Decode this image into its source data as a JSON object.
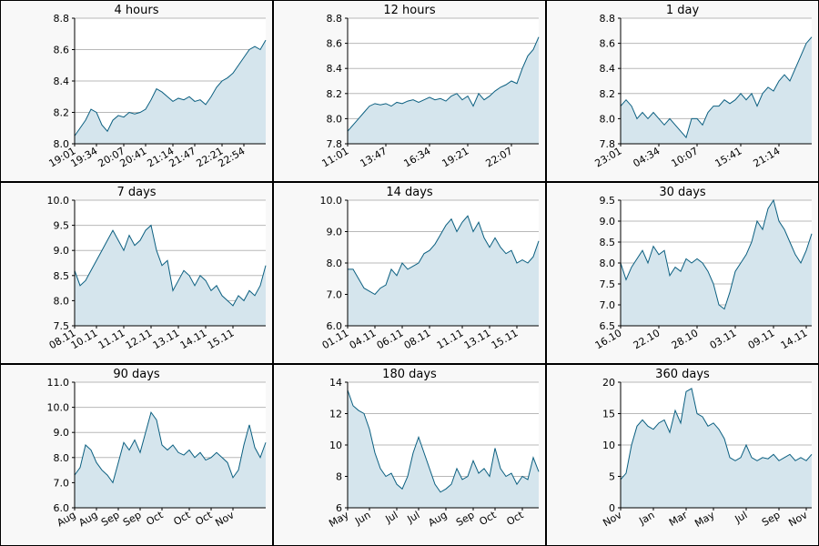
{
  "chart_data": [
    {
      "type": "area",
      "title": "4 hours",
      "color": "#0b5f80",
      "fill": "#d5e5ed",
      "grid": true,
      "categories": [
        "19:01",
        null,
        null,
        null,
        "19:34",
        null,
        null,
        null,
        null,
        "20:07",
        null,
        null,
        null,
        "20:41",
        null,
        null,
        null,
        null,
        "21:14",
        null,
        null,
        null,
        "21:47",
        null,
        null,
        null,
        null,
        "22:21",
        null,
        null,
        null,
        "22:54",
        null,
        null,
        null,
        null
      ],
      "values": [
        8.05,
        8.1,
        8.15,
        8.22,
        8.2,
        8.12,
        8.08,
        8.15,
        8.18,
        8.17,
        8.2,
        8.19,
        8.2,
        8.22,
        8.28,
        8.35,
        8.33,
        8.3,
        8.27,
        8.29,
        8.28,
        8.3,
        8.27,
        8.28,
        8.25,
        8.3,
        8.36,
        8.4,
        8.42,
        8.45,
        8.5,
        8.55,
        8.6,
        8.62,
        8.6,
        8.66
      ],
      "ylim": [
        8.0,
        8.8
      ],
      "yticks": [
        {
          "value": 8.0,
          "label": "8.0"
        },
        8.2,
        8.4,
        8.6,
        8.8
      ]
    },
    {
      "type": "area",
      "title": "12 hours",
      "color": "#0b5f80",
      "fill": "#d5e5ed",
      "grid": true,
      "categories": [
        "11:01",
        null,
        null,
        null,
        null,
        null,
        null,
        "13:47",
        null,
        null,
        null,
        null,
        null,
        null,
        null,
        "16:34",
        null,
        null,
        null,
        null,
        null,
        null,
        "19:21",
        null,
        null,
        null,
        null,
        null,
        null,
        null,
        "22:07",
        null,
        null,
        null,
        null,
        null
      ],
      "values": [
        7.9,
        7.95,
        8.0,
        8.05,
        8.1,
        8.12,
        8.11,
        8.12,
        8.1,
        8.13,
        8.12,
        8.14,
        8.15,
        8.13,
        8.15,
        8.17,
        8.15,
        8.16,
        8.14,
        8.18,
        8.2,
        8.15,
        8.18,
        8.1,
        8.2,
        8.15,
        8.18,
        8.22,
        8.25,
        8.27,
        8.3,
        8.28,
        8.4,
        8.5,
        8.55,
        8.65
      ],
      "ylim": [
        7.8,
        8.8
      ],
      "yticks": [
        7.8,
        {
          "value": 8.0,
          "label": "8.0"
        },
        8.2,
        8.4,
        8.6,
        8.8
      ]
    },
    {
      "type": "area",
      "title": "1 day",
      "color": "#0b5f80",
      "fill": "#d5e5ed",
      "grid": true,
      "categories": [
        "23:01",
        null,
        null,
        null,
        null,
        null,
        null,
        "04:34",
        null,
        null,
        null,
        null,
        null,
        null,
        "10:07",
        null,
        null,
        null,
        null,
        null,
        null,
        null,
        "15:41",
        null,
        null,
        null,
        null,
        null,
        null,
        "21:14",
        null,
        null,
        null,
        null,
        null,
        null
      ],
      "values": [
        8.1,
        8.15,
        8.1,
        8.0,
        8.05,
        8.0,
        8.05,
        8.0,
        7.95,
        8.0,
        7.95,
        7.9,
        7.85,
        8.0,
        8.0,
        7.95,
        8.05,
        8.1,
        8.1,
        8.15,
        8.12,
        8.15,
        8.2,
        8.15,
        8.2,
        8.1,
        8.2,
        8.25,
        8.22,
        8.3,
        8.35,
        8.3,
        8.4,
        8.5,
        8.6,
        8.65
      ],
      "ylim": [
        7.8,
        8.8
      ],
      "yticks": [
        7.8,
        {
          "value": 8.0,
          "label": "8.0"
        },
        8.2,
        8.4,
        8.6,
        8.8
      ]
    },
    {
      "type": "area",
      "title": "7 days",
      "color": "#0b5f80",
      "fill": "#d5e5ed",
      "grid": true,
      "categories": [
        "08.11",
        null,
        null,
        null,
        "10.11",
        null,
        null,
        null,
        null,
        "11.11",
        null,
        null,
        null,
        null,
        "12.11",
        null,
        null,
        null,
        null,
        "13.11",
        null,
        null,
        null,
        null,
        "14.11",
        null,
        null,
        null,
        null,
        "15.11",
        null,
        null,
        null,
        null,
        null,
        null
      ],
      "values": [
        8.6,
        8.3,
        8.4,
        8.6,
        8.8,
        9.0,
        9.2,
        9.4,
        9.2,
        9.0,
        9.3,
        9.1,
        9.2,
        9.4,
        9.5,
        9.0,
        8.7,
        8.8,
        8.2,
        8.4,
        8.6,
        8.5,
        8.3,
        8.5,
        8.4,
        8.2,
        8.3,
        8.1,
        8.0,
        7.9,
        8.1,
        8.0,
        8.2,
        8.1,
        8.3,
        8.7
      ],
      "ylim": [
        7.5,
        10.0
      ],
      "yticks": [
        7.5,
        {
          "value": 8.0,
          "label": "8.0"
        },
        8.5,
        {
          "value": 9.0,
          "label": "9.0"
        },
        9.5,
        {
          "value": 10.0,
          "label": "10.0"
        }
      ]
    },
    {
      "type": "area",
      "title": "14 days",
      "color": "#0b5f80",
      "fill": "#d5e5ed",
      "grid": true,
      "categories": [
        "01.11",
        null,
        null,
        null,
        null,
        "04.11",
        null,
        null,
        null,
        null,
        "06.11",
        null,
        null,
        null,
        null,
        "08.11",
        null,
        null,
        null,
        null,
        null,
        "11.11",
        null,
        null,
        null,
        null,
        "13.11",
        null,
        null,
        null,
        null,
        "15.11",
        null,
        null,
        null,
        null
      ],
      "values": [
        7.8,
        7.8,
        7.5,
        7.2,
        7.1,
        7.0,
        7.2,
        7.3,
        7.8,
        7.6,
        8.0,
        7.8,
        7.9,
        8.0,
        8.3,
        8.4,
        8.6,
        8.9,
        9.2,
        9.4,
        9.0,
        9.3,
        9.5,
        9.0,
        9.3,
        8.8,
        8.5,
        8.8,
        8.5,
        8.3,
        8.4,
        8.0,
        8.1,
        8.0,
        8.2,
        8.7
      ],
      "ylim": [
        6.0,
        10.0
      ],
      "yticks": [
        {
          "value": 6.0,
          "label": "6.0"
        },
        {
          "value": 7.0,
          "label": "7.0"
        },
        {
          "value": 8.0,
          "label": "8.0"
        },
        {
          "value": 9.0,
          "label": "9.0"
        },
        {
          "value": 10.0,
          "label": "10.0"
        }
      ]
    },
    {
      "type": "area",
      "title": "30 days",
      "color": "#0b5f80",
      "fill": "#d5e5ed",
      "grid": true,
      "categories": [
        "16.10",
        null,
        null,
        null,
        null,
        null,
        null,
        "22.10",
        null,
        null,
        null,
        null,
        null,
        null,
        "28.10",
        null,
        null,
        null,
        null,
        null,
        null,
        "03.11",
        null,
        null,
        null,
        null,
        null,
        null,
        "09.11",
        null,
        null,
        null,
        null,
        null,
        "14.11",
        null
      ],
      "values": [
        8.0,
        7.6,
        7.9,
        8.1,
        8.3,
        8.0,
        8.4,
        8.2,
        8.3,
        7.7,
        7.9,
        7.8,
        8.1,
        8.0,
        8.1,
        8.0,
        7.8,
        7.5,
        7.0,
        6.9,
        7.3,
        7.8,
        8.0,
        8.2,
        8.5,
        9.0,
        8.8,
        9.3,
        9.5,
        9.0,
        8.8,
        8.5,
        8.2,
        8.0,
        8.3,
        8.7
      ],
      "ylim": [
        6.5,
        9.5
      ],
      "yticks": [
        6.5,
        {
          "value": 7.0,
          "label": "7.0"
        },
        7.5,
        {
          "value": 8.0,
          "label": "8.0"
        },
        8.5,
        {
          "value": 9.0,
          "label": "9.0"
        },
        9.5
      ]
    },
    {
      "type": "area",
      "title": "90 days",
      "color": "#0b5f80",
      "fill": "#d5e5ed",
      "grid": true,
      "categories": [
        "Aug",
        null,
        null,
        null,
        "Aug",
        null,
        null,
        null,
        "Sep",
        null,
        null,
        null,
        "Sep",
        null,
        null,
        null,
        "Oct",
        null,
        null,
        null,
        null,
        "Oct",
        null,
        null,
        null,
        "Oct",
        null,
        null,
        null,
        "Nov",
        null,
        null,
        null,
        null,
        null,
        null
      ],
      "values": [
        7.3,
        7.6,
        8.5,
        8.3,
        7.8,
        7.5,
        7.3,
        7.0,
        7.8,
        8.6,
        8.3,
        8.7,
        8.2,
        9.0,
        9.8,
        9.5,
        8.5,
        8.3,
        8.5,
        8.2,
        8.1,
        8.3,
        8.0,
        8.2,
        7.9,
        8.0,
        8.2,
        8.0,
        7.8,
        7.2,
        7.5,
        8.5,
        9.3,
        8.4,
        8.0,
        8.6
      ],
      "ylim": [
        6.0,
        11.0
      ],
      "yticks": [
        {
          "value": 6.0,
          "label": "6.0"
        },
        {
          "value": 7.0,
          "label": "7.0"
        },
        {
          "value": 8.0,
          "label": "8.0"
        },
        {
          "value": 9.0,
          "label": "9.0"
        },
        {
          "value": 10.0,
          "label": "10.0"
        },
        {
          "value": 11.0,
          "label": "11.0"
        }
      ]
    },
    {
      "type": "area",
      "title": "180 days",
      "color": "#0b5f80",
      "fill": "#d5e5ed",
      "grid": true,
      "categories": [
        "May",
        null,
        null,
        null,
        "Jun",
        null,
        null,
        null,
        null,
        "Jul",
        null,
        null,
        null,
        "Jul",
        null,
        null,
        null,
        null,
        "Aug",
        null,
        null,
        null,
        null,
        "Sep",
        null,
        null,
        null,
        "Oct",
        null,
        null,
        null,
        null,
        "Oct",
        null,
        null,
        null
      ],
      "values": [
        13.5,
        12.5,
        12.2,
        12.0,
        11.0,
        9.5,
        8.5,
        8.0,
        8.2,
        7.5,
        7.2,
        8.0,
        9.5,
        10.5,
        9.5,
        8.5,
        7.5,
        7.0,
        7.2,
        7.5,
        8.5,
        7.8,
        8.0,
        9.0,
        8.2,
        8.5,
        8.0,
        9.8,
        8.5,
        8.0,
        8.2,
        7.5,
        8.0,
        7.8,
        9.2,
        8.3
      ],
      "ylim": [
        6,
        14
      ],
      "yticks": [
        6,
        8,
        10,
        12,
        14
      ]
    },
    {
      "type": "area",
      "title": "360 days",
      "color": "#0b5f80",
      "fill": "#d5e5ed",
      "grid": true,
      "categories": [
        "Nov",
        null,
        null,
        null,
        null,
        null,
        "Jan",
        null,
        null,
        null,
        null,
        null,
        "Mar",
        null,
        null,
        null,
        null,
        "May",
        null,
        null,
        null,
        null,
        null,
        "Jul",
        null,
        null,
        null,
        null,
        null,
        "Sep",
        null,
        null,
        null,
        null,
        "Nov",
        null
      ],
      "values": [
        4.5,
        5.5,
        10.0,
        13.0,
        14.0,
        13.0,
        12.5,
        13.5,
        14.0,
        12.0,
        15.5,
        13.5,
        18.5,
        19.0,
        15.0,
        14.5,
        13.0,
        13.5,
        12.5,
        11.0,
        8.0,
        7.5,
        8.0,
        10.0,
        8.0,
        7.5,
        8.0,
        7.8,
        8.5,
        7.5,
        8.0,
        8.5,
        7.5,
        8.0,
        7.5,
        8.5
      ],
      "ylim": [
        0,
        20
      ],
      "yticks": [
        0,
        5,
        10,
        15,
        20
      ]
    }
  ]
}
